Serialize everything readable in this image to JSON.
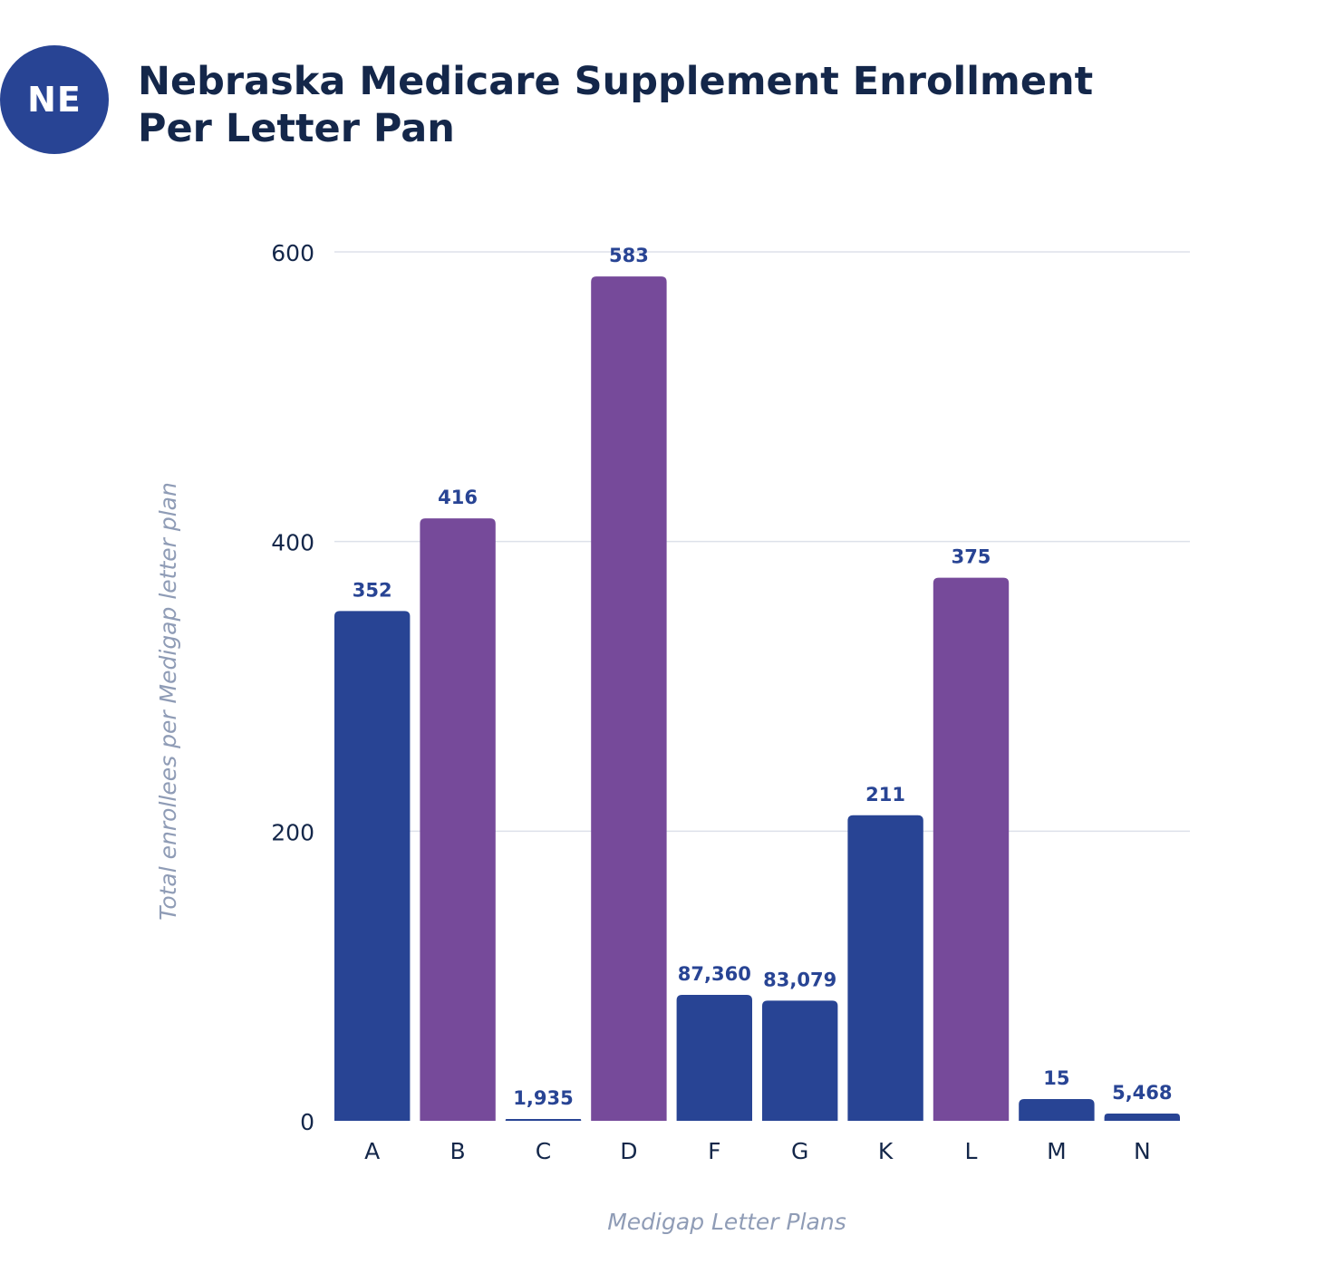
{
  "header": {
    "badge": "NE",
    "title_line1": "Nebraska Medicare Supplement Enrollment",
    "title_line2": "Per Letter Pan"
  },
  "colors": {
    "navy_bar": "#284494",
    "purple_bar": "#764a9a",
    "label": "#284494",
    "axis_text": "#14274a",
    "axis_title": "#8f9cb6",
    "grid": "#dde1ea",
    "badge": "#284494"
  },
  "chart_data": {
    "type": "bar",
    "title": "Nebraska Medicare Supplement Enrollment Per Letter Pan",
    "xlabel": "Medigap Letter Plans",
    "ylabel": "Total enrollees per Medigap letter plan",
    "ylim": [
      0,
      600
    ],
    "yticks": [
      0,
      200,
      400,
      600
    ],
    "grid": true,
    "categories": [
      "A",
      "B",
      "C",
      "D",
      "F",
      "G",
      "K",
      "L",
      "M",
      "N"
    ],
    "values": [
      352,
      416,
      1935,
      583,
      87360,
      83079,
      211,
      375,
      15,
      5468
    ],
    "value_labels": [
      "352",
      "416",
      "1,935",
      "583",
      "87,360",
      "83,079",
      "211",
      "375",
      "15",
      "5,468"
    ],
    "bar_levels": [
      352,
      416,
      1,
      583,
      87,
      83,
      211,
      375,
      15,
      5
    ],
    "bar_colors": [
      "navy",
      "purple",
      "navy",
      "purple",
      "navy",
      "navy",
      "navy",
      "purple",
      "navy",
      "navy"
    ]
  }
}
